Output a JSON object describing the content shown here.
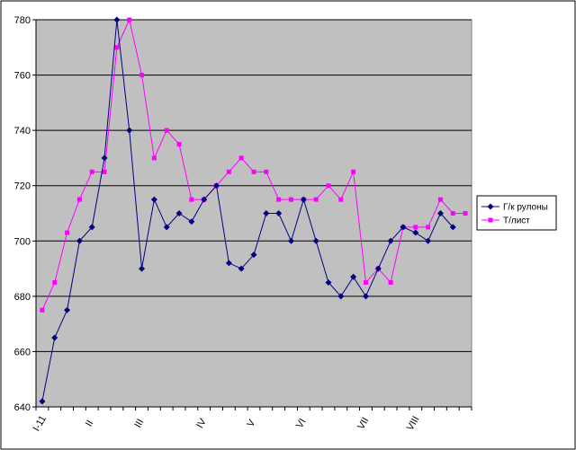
{
  "chart_data": {
    "type": "line",
    "title": "",
    "xlabel": "",
    "ylabel": "",
    "ylim": [
      640,
      780
    ],
    "yticks": [
      640,
      660,
      680,
      700,
      720,
      740,
      760,
      780
    ],
    "grid": true,
    "legend_position": "right",
    "plot_background": "#c0c0c0",
    "x_tick_labels": [
      {
        "label": "I-11",
        "index": 0
      },
      {
        "label": "II",
        "index": 4
      },
      {
        "label": "III",
        "index": 8
      },
      {
        "label": "IV",
        "index": 13
      },
      {
        "label": "V",
        "index": 17
      },
      {
        "label": "VI",
        "index": 21
      },
      {
        "label": "VII",
        "index": 26
      },
      {
        "label": "VIII",
        "index": 30
      }
    ],
    "series": [
      {
        "name": "Г/к рулоны",
        "color": "#000080",
        "marker": "diamond",
        "values": [
          642,
          665,
          675,
          700,
          705,
          730,
          780,
          740,
          690,
          715,
          705,
          710,
          707,
          715,
          720,
          692,
          690,
          695,
          710,
          710,
          700,
          715,
          700,
          685,
          680,
          687,
          680,
          690,
          700,
          705,
          703,
          700,
          710,
          705
        ]
      },
      {
        "name": "Т/лист",
        "color": "#ff00ff",
        "marker": "square",
        "values": [
          675,
          685,
          703,
          715,
          725,
          725,
          770,
          780,
          760,
          730,
          740,
          735,
          715,
          715,
          720,
          725,
          730,
          725,
          725,
          715,
          715,
          715,
          715,
          720,
          715,
          725,
          685,
          690,
          685,
          705,
          705,
          705,
          715,
          710,
          710
        ]
      }
    ]
  }
}
